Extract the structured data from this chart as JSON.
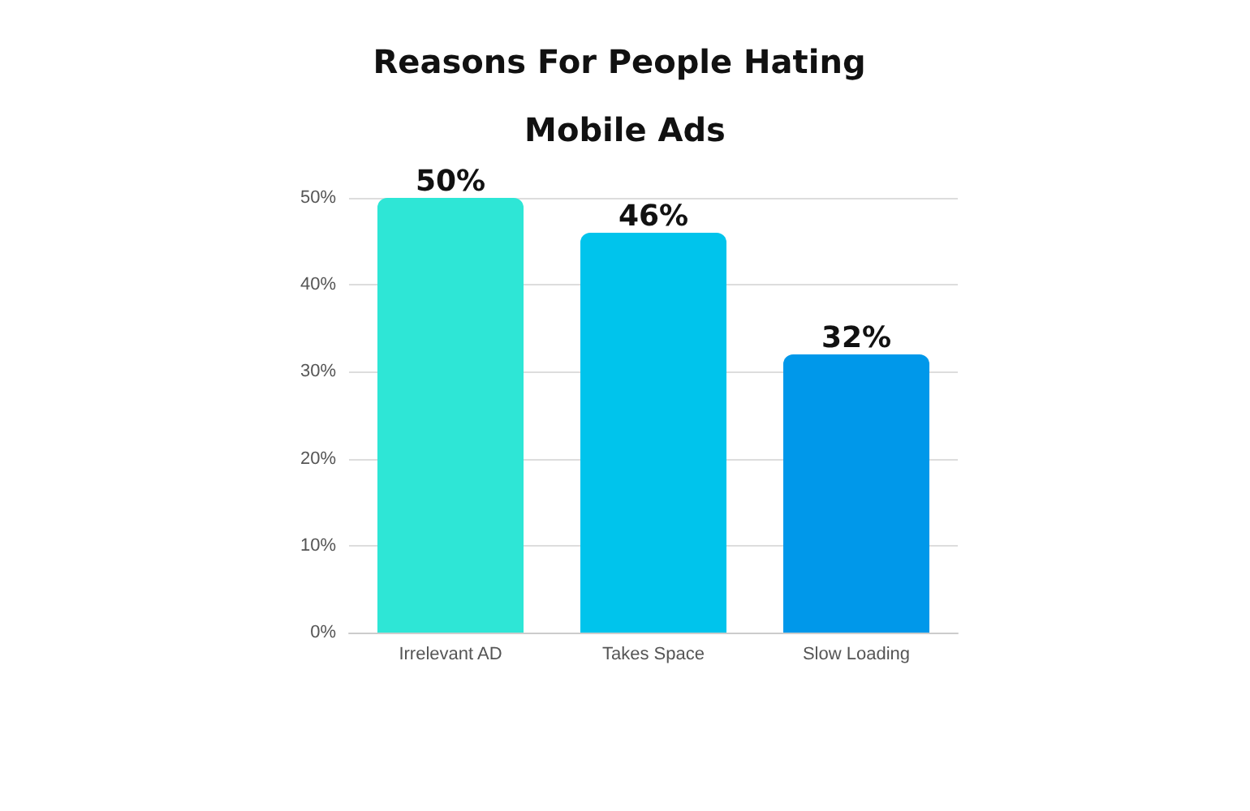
{
  "chart_data": {
    "type": "bar",
    "title": "Reasons For People Hating Mobile Ads",
    "categories": [
      "Irrelevant AD",
      "Takes Space",
      "Slow Loading"
    ],
    "values": [
      50,
      46,
      32
    ],
    "colors": [
      "#2ee6d6",
      "#00c4ec",
      "#0098ea"
    ],
    "value_labels": [
      "50%",
      "46%",
      "32%"
    ],
    "ylim": [
      0,
      50
    ],
    "yticks": [
      {
        "value": 0,
        "label": "0%"
      },
      {
        "value": 10,
        "label": "10%"
      },
      {
        "value": 20,
        "label": "20%"
      },
      {
        "value": 30,
        "label": "30%"
      },
      {
        "value": 40,
        "label": "40%"
      },
      {
        "value": 50,
        "label": "50%"
      }
    ],
    "grid": "y"
  }
}
